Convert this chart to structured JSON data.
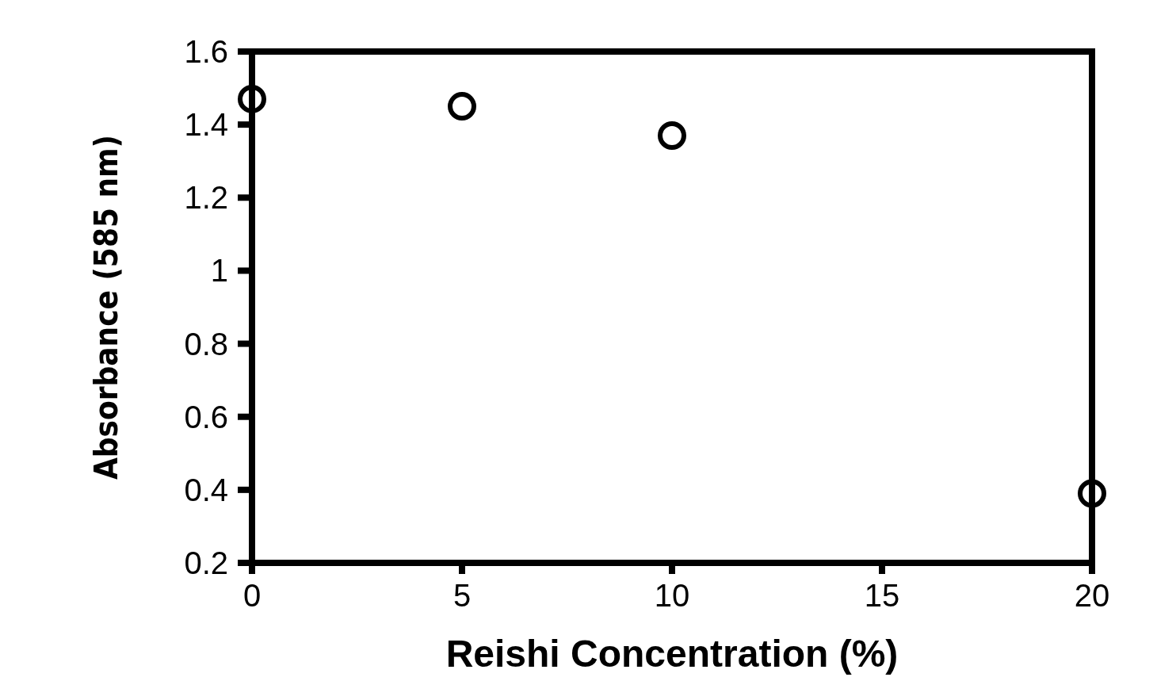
{
  "chart_data": {
    "type": "scatter",
    "xlabel": "Reishi Concentration (%)",
    "ylabel": "Absorbance (585 nm)",
    "x": [
      0,
      5,
      10,
      20
    ],
    "series": [
      {
        "color": "#000000",
        "values": [
          1.47,
          1.45,
          1.37,
          0.39
        ]
      }
    ],
    "xlim": [
      0,
      20
    ],
    "xticks": [
      0,
      5,
      10,
      15,
      20
    ],
    "ylim": [
      0.2,
      1.6
    ],
    "yticks": [
      0.2,
      0.4,
      0.6,
      0.8,
      1,
      1.2,
      1.4,
      1.6
    ],
    "grid": false,
    "marker": "circle"
  }
}
